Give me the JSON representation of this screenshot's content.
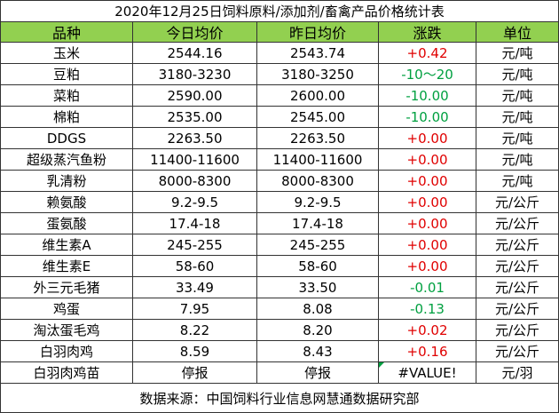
{
  "title": "2020年12月25日饲料原料/添加剂/畜禽产品价格统计表",
  "table": {
    "header": [
      "品种",
      "今日均价",
      "昨日均价",
      "涨跌",
      "单位"
    ],
    "rows": [
      [
        "玉米",
        "2544.16",
        "2543.74",
        "+0.42",
        "元/吨"
      ],
      [
        "豆粕",
        "3180-3230",
        "3180-3250",
        "-10～20",
        "元/吨"
      ],
      [
        "菜粕",
        "2590.00",
        "2600.00",
        "-10.00",
        "元/吨"
      ],
      [
        "棉粕",
        "2535.00",
        "2545.00",
        "-10.00",
        "元/吨"
      ],
      [
        "DDGS",
        "2263.50",
        "2263.50",
        "+0.00",
        "元/吨"
      ],
      [
        "超级蒸汽鱼粉",
        "11400-11600",
        "11400-11600",
        "+0.00",
        "元/吨"
      ],
      [
        "乳清粉",
        "8000-8300",
        "8000-8300",
        "+0.00",
        "元/吨"
      ],
      [
        "赖氨酸",
        "9.2-9.5",
        "9.2-9.5",
        "+0.00",
        "元/公斤"
      ],
      [
        "蛋氨酸",
        "17.4-18",
        "17.4-18",
        "+0.00",
        "元/公斤"
      ],
      [
        "维生素A",
        "245-255",
        "245-255",
        "+0.00",
        "元/公斤"
      ],
      [
        "维生素E",
        "58-60",
        "58-60",
        "+0.00",
        "元/公斤"
      ],
      [
        "外三元毛猪",
        "33.49",
        "33.50",
        "-0.01",
        "元/公斤"
      ],
      [
        "鸡蛋",
        "7.95",
        "8.08",
        "-0.13",
        "元/公斤"
      ],
      [
        "淘汰蛋毛鸡",
        "8.22",
        "8.20",
        "+0.02",
        "元/公斤"
      ],
      [
        "白羽肉鸡",
        "8.59",
        "8.43",
        "+0.16",
        "元/公斤"
      ],
      [
        "白羽肉鸡苗",
        "停报",
        "停报",
        "#VALUE!",
        "元/羽"
      ]
    ]
  },
  "source": "数据来源：中国饲料行业信息网慧通数据研究部"
}
